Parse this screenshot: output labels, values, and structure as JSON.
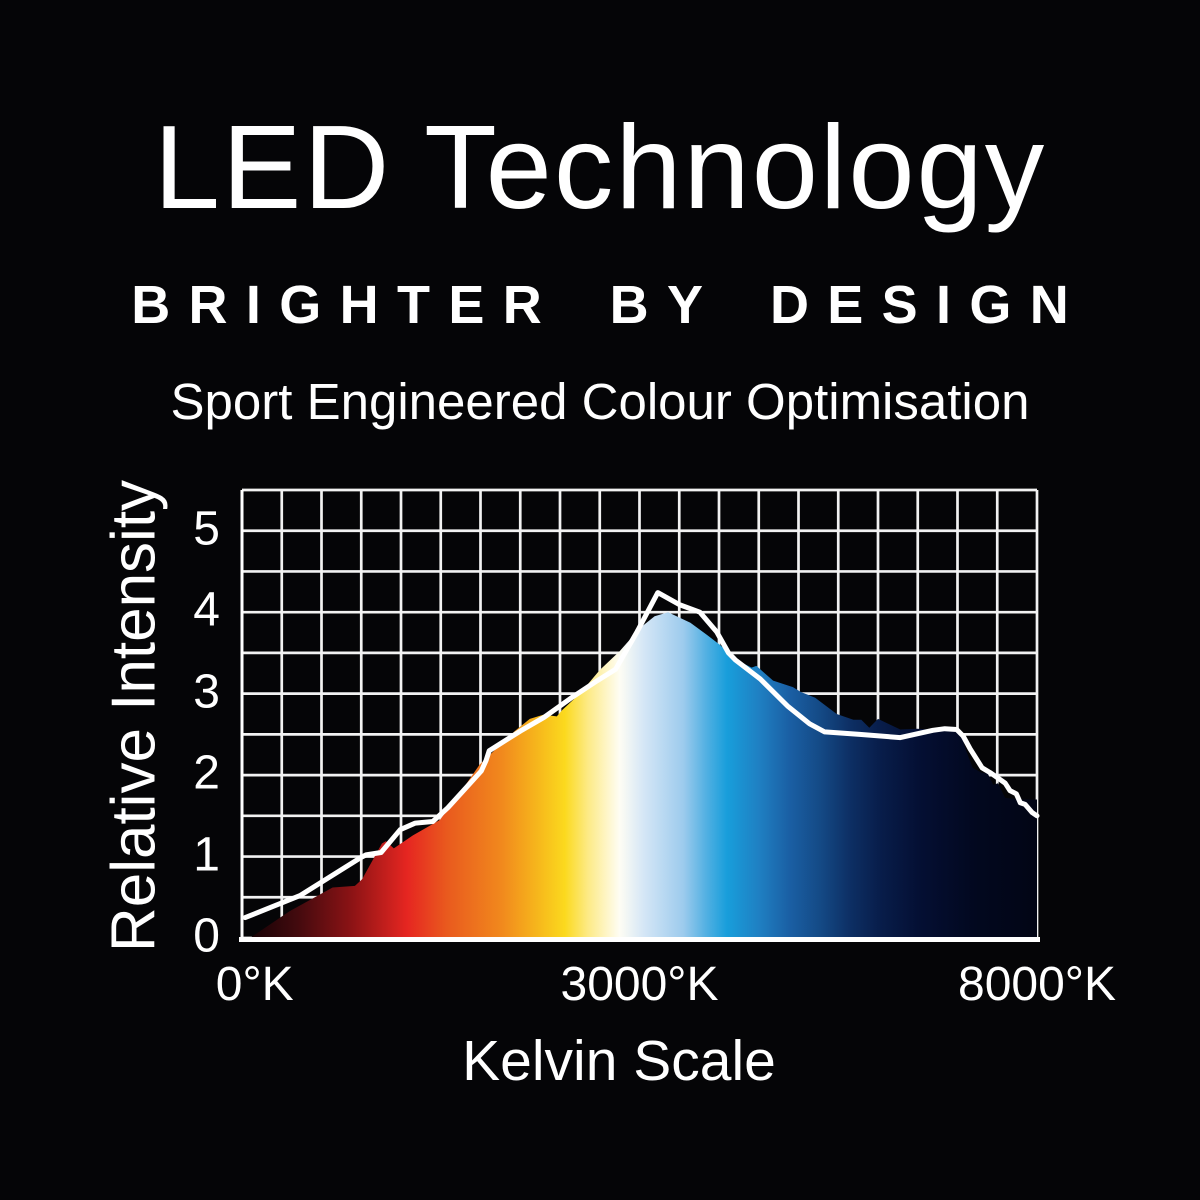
{
  "colors": {
    "background": "#050507",
    "text": "#ffffff",
    "grid": "#f2f2f2",
    "axis": "#ffffff",
    "line": "#ffffff"
  },
  "header": {
    "title": "LED Technology",
    "tagline": "BRIGHTER BY DESIGN",
    "subtitle": "Sport Engineered Colour Optimisation"
  },
  "chart_data": {
    "type": "area",
    "title": "",
    "xlabel": "Kelvin Scale",
    "ylabel": "Relative Intensity",
    "ylim": [
      0,
      5.5
    ],
    "y_ticks": [
      0,
      1,
      2,
      3,
      4,
      5
    ],
    "x_ticks": [
      {
        "label": "0°K",
        "pos": 0.016
      },
      {
        "label": "3000°K",
        "pos": 0.5
      },
      {
        "label": "8000°K",
        "pos": 1.0
      }
    ],
    "grid": {
      "on": true,
      "cols": 20,
      "rows": 11
    },
    "legend_position": "none",
    "series": [
      {
        "name": "led-spectrum-area",
        "type": "area",
        "fill": "kelvin-gradient",
        "points": [
          [
            0.01,
            0.0
          ],
          [
            0.06,
            0.33
          ],
          [
            0.114,
            0.62
          ],
          [
            0.142,
            0.64
          ],
          [
            0.151,
            0.72
          ],
          [
            0.176,
            1.16
          ],
          [
            0.181,
            1.19
          ],
          [
            0.191,
            1.1
          ],
          [
            0.215,
            1.26
          ],
          [
            0.249,
            1.45
          ],
          [
            0.277,
            1.82
          ],
          [
            0.299,
            2.13
          ],
          [
            0.343,
            2.54
          ],
          [
            0.362,
            2.69
          ],
          [
            0.379,
            2.74
          ],
          [
            0.396,
            2.72
          ],
          [
            0.403,
            2.8
          ],
          [
            0.425,
            3.0
          ],
          [
            0.45,
            3.29
          ],
          [
            0.475,
            3.52
          ],
          [
            0.501,
            3.81
          ],
          [
            0.519,
            3.95
          ],
          [
            0.536,
            4.0
          ],
          [
            0.564,
            3.87
          ],
          [
            0.585,
            3.72
          ],
          [
            0.601,
            3.6
          ],
          [
            0.621,
            3.42
          ],
          [
            0.641,
            3.32
          ],
          [
            0.647,
            3.34
          ],
          [
            0.668,
            3.16
          ],
          [
            0.693,
            3.08
          ],
          [
            0.703,
            3.02
          ],
          [
            0.721,
            2.95
          ],
          [
            0.748,
            2.75
          ],
          [
            0.769,
            2.68
          ],
          [
            0.779,
            2.68
          ],
          [
            0.789,
            2.58
          ],
          [
            0.8,
            2.69
          ],
          [
            0.828,
            2.56
          ],
          [
            0.849,
            2.57
          ],
          [
            0.903,
            2.54
          ],
          [
            0.911,
            2.3
          ],
          [
            0.919,
            2.09
          ],
          [
            0.93,
            2.03
          ],
          [
            0.938,
            2.02
          ],
          [
            0.945,
            1.88
          ],
          [
            0.951,
            1.9
          ],
          [
            0.96,
            1.72
          ],
          [
            0.979,
            1.7
          ],
          [
            1.0,
            1.7
          ]
        ]
      },
      {
        "name": "reference-curve",
        "type": "line",
        "color": "#ffffff",
        "points": [
          [
            0.004,
            0.25
          ],
          [
            0.073,
            0.52
          ],
          [
            0.148,
            0.98
          ],
          [
            0.156,
            1.02
          ],
          [
            0.175,
            1.05
          ],
          [
            0.199,
            1.33
          ],
          [
            0.218,
            1.41
          ],
          [
            0.24,
            1.43
          ],
          [
            0.259,
            1.6
          ],
          [
            0.287,
            1.9
          ],
          [
            0.301,
            2.05
          ],
          [
            0.307,
            2.18
          ],
          [
            0.311,
            2.3
          ],
          [
            0.35,
            2.54
          ],
          [
            0.38,
            2.71
          ],
          [
            0.416,
            2.96
          ],
          [
            0.447,
            3.16
          ],
          [
            0.47,
            3.3
          ],
          [
            0.497,
            3.76
          ],
          [
            0.523,
            4.24
          ],
          [
            0.551,
            4.09
          ],
          [
            0.576,
            4.0
          ],
          [
            0.597,
            3.76
          ],
          [
            0.612,
            3.5
          ],
          [
            0.621,
            3.41
          ],
          [
            0.652,
            3.18
          ],
          [
            0.686,
            2.85
          ],
          [
            0.714,
            2.63
          ],
          [
            0.733,
            2.53
          ],
          [
            0.777,
            2.5
          ],
          [
            0.828,
            2.46
          ],
          [
            0.869,
            2.55
          ],
          [
            0.884,
            2.57
          ],
          [
            0.899,
            2.56
          ],
          [
            0.907,
            2.48
          ],
          [
            0.916,
            2.32
          ],
          [
            0.931,
            2.09
          ],
          [
            0.941,
            2.03
          ],
          [
            0.953,
            1.95
          ],
          [
            0.96,
            1.9
          ],
          [
            0.966,
            1.81
          ],
          [
            0.974,
            1.77
          ],
          [
            0.979,
            1.66
          ],
          [
            0.985,
            1.64
          ],
          [
            0.994,
            1.54
          ],
          [
            1.0,
            1.5
          ]
        ]
      }
    ],
    "gradient_stops": [
      [
        0.0,
        "#130104"
      ],
      [
        0.01,
        "#160205"
      ],
      [
        0.069,
        "#420a0e"
      ],
      [
        0.138,
        "#8c1315"
      ],
      [
        0.208,
        "#e62621"
      ],
      [
        0.258,
        "#e95a1e"
      ],
      [
        0.327,
        "#f1891d"
      ],
      [
        0.376,
        "#f7bb1c"
      ],
      [
        0.406,
        "#fbd91e"
      ],
      [
        0.435,
        "#fdea85"
      ],
      [
        0.475,
        "#fefdf4"
      ],
      [
        0.506,
        "#d4e6f6"
      ],
      [
        0.555,
        "#9dcbed"
      ],
      [
        0.584,
        "#52b0e2"
      ],
      [
        0.61,
        "#189edb"
      ],
      [
        0.651,
        "#1f7fc2"
      ],
      [
        0.689,
        "#1a5fa4"
      ],
      [
        0.727,
        "#144a86"
      ],
      [
        0.765,
        "#0d2f64"
      ],
      [
        0.803,
        "#081d4a"
      ],
      [
        0.853,
        "#040f33"
      ],
      [
        0.922,
        "#02081f"
      ],
      [
        1.0,
        "#020515"
      ]
    ]
  }
}
